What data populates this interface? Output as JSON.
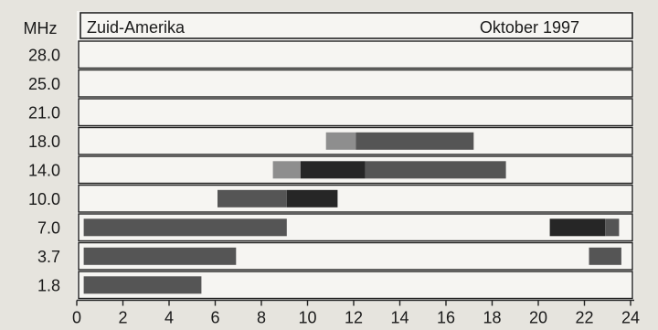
{
  "chart_data": {
    "type": "bar",
    "orientation": "horizontal-timeline",
    "title": "Zuid-Amerika",
    "subtitle": "Oktober 1997",
    "ylabel": "MHz",
    "y_categories": [
      "28.0",
      "25.0",
      "21.0",
      "18.0",
      "14.0",
      "10.0",
      "7.0",
      "3.7",
      "1.8"
    ],
    "x_ticks": [
      0,
      2,
      4,
      6,
      8,
      10,
      12,
      14,
      16,
      18,
      20,
      22,
      24
    ],
    "xlim": [
      0,
      24
    ],
    "grid": false,
    "colors": {
      "background": "#e6e4de",
      "panel": "#f6f5f2",
      "light": "#8e8e8e",
      "medium": "#555555",
      "dark": "#262626"
    },
    "segments": [
      {
        "band": "18.0",
        "start": 10.8,
        "end": 12.1,
        "shade": "light"
      },
      {
        "band": "18.0",
        "start": 12.1,
        "end": 17.2,
        "shade": "medium"
      },
      {
        "band": "14.0",
        "start": 8.5,
        "end": 9.7,
        "shade": "light"
      },
      {
        "band": "14.0",
        "start": 9.7,
        "end": 12.5,
        "shade": "dark"
      },
      {
        "band": "14.0",
        "start": 12.5,
        "end": 18.6,
        "shade": "medium"
      },
      {
        "band": "10.0",
        "start": 6.1,
        "end": 9.1,
        "shade": "medium"
      },
      {
        "band": "10.0",
        "start": 9.1,
        "end": 11.3,
        "shade": "dark"
      },
      {
        "band": "7.0",
        "start": 0.3,
        "end": 9.1,
        "shade": "medium"
      },
      {
        "band": "7.0",
        "start": 20.5,
        "end": 22.9,
        "shade": "dark"
      },
      {
        "band": "7.0",
        "start": 22.9,
        "end": 23.5,
        "shade": "medium"
      },
      {
        "band": "3.7",
        "start": 0.3,
        "end": 6.9,
        "shade": "medium"
      },
      {
        "band": "3.7",
        "start": 22.2,
        "end": 23.6,
        "shade": "medium"
      },
      {
        "band": "1.8",
        "start": 0.3,
        "end": 5.4,
        "shade": "medium"
      }
    ]
  }
}
